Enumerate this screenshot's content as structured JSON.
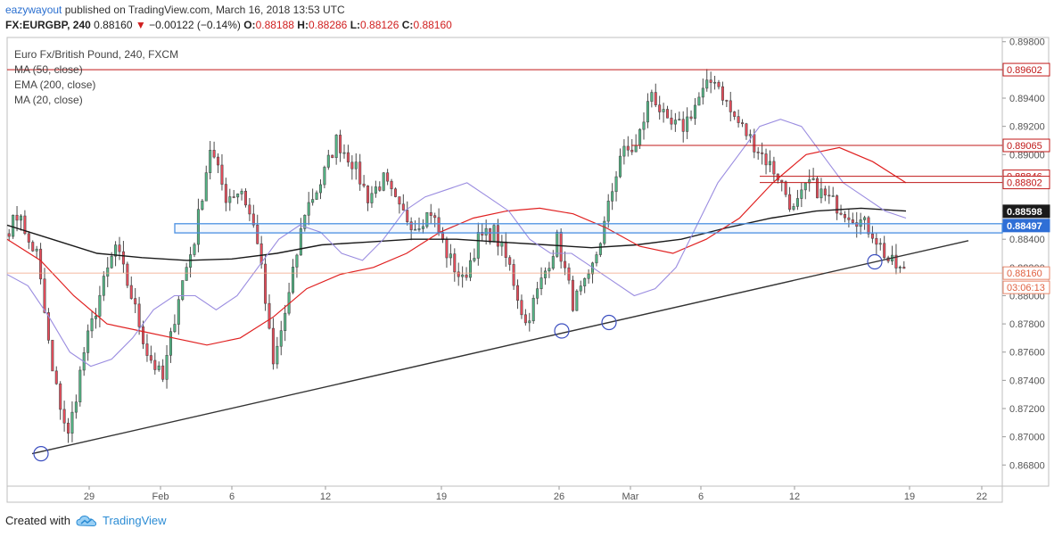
{
  "header": {
    "user": "eazywayout",
    "published": "published on TradingView.com, March 16, 2018 13:53 UTC",
    "symbol": "FX:EURGBP, 240",
    "last": "0.88160",
    "change_arrow": "▼",
    "change": "−0.00122 (−0.14%)",
    "o_label": "O:",
    "o_value": "0.88188",
    "h_label": "H:",
    "h_value": "0.88286",
    "l_label": "L:",
    "l_value": "0.88126",
    "c_label": "C:",
    "c_value": "0.88160"
  },
  "legend": {
    "title": "Euro Fx/British Pound, 240, FXCM",
    "items": [
      "MA (50, close)",
      "EMA (200, close)",
      "MA (20, close)"
    ]
  },
  "footer": {
    "created_with": "Created with",
    "brand": "TradingView",
    "logo_icon": "tradingview-cloud-icon"
  },
  "colors": {
    "bull": "#53b987",
    "bear": "#eb4d5c",
    "candle_outline": "#4a4a4a",
    "ma50": "#e02020",
    "ema200": "#1a1a1a",
    "ma20": "#9a8ce0",
    "resistance": "#c01818",
    "zone": "#4a90e2",
    "trendline": "#333333",
    "price_line": "#f0a080"
  },
  "chart_data": {
    "type": "candlestick",
    "x_axis_ticks": [
      "29",
      "Feb",
      "6",
      "12",
      "19",
      "26",
      "Mar",
      "6",
      "12",
      "19",
      "22"
    ],
    "y_axis_ticks": [
      "0.89800",
      "0.89600",
      "0.89400",
      "0.89200",
      "0.89000",
      "0.88800",
      "0.88600",
      "0.88400",
      "0.88200",
      "0.88000",
      "0.87800",
      "0.87600",
      "0.87400",
      "0.87200",
      "0.87000",
      "0.86800"
    ],
    "ylim": [
      0.8665,
      0.8983
    ],
    "price_labels": [
      {
        "value": "0.89602",
        "kind": "resistance"
      },
      {
        "value": "0.89065",
        "kind": "resistance"
      },
      {
        "value": "0.88846",
        "kind": "resistance"
      },
      {
        "value": "0.88802",
        "kind": "resistance"
      },
      {
        "value": "0.88598",
        "kind": "ema"
      },
      {
        "value": "0.88497",
        "kind": "zone"
      },
      {
        "value": "0.88160",
        "kind": "last"
      },
      {
        "value": "03:06:13",
        "kind": "countdown"
      }
    ],
    "horizontal_levels": [
      0.89602,
      0.89065,
      0.88846,
      0.88802
    ],
    "support_zone": [
      0.88445,
      0.8851
    ],
    "trendline": [
      [
        0.8688,
        0
      ],
      [
        0.8839,
        1
      ]
    ],
    "swing_lows_marked": [
      0.8688,
      0.8775,
      0.8781,
      0.8824
    ],
    "anchors": [
      [
        0.8844,
        0.886
      ],
      [
        0.8845,
        0.883
      ],
      [
        0.883,
        0.8745
      ],
      [
        0.8745,
        0.87
      ],
      [
        0.87,
        0.876
      ],
      [
        0.876,
        0.88
      ],
      [
        0.88,
        0.8835
      ],
      [
        0.8835,
        0.88
      ],
      [
        0.88,
        0.876
      ],
      [
        0.876,
        0.874
      ],
      [
        0.874,
        0.88
      ],
      [
        0.88,
        0.884
      ],
      [
        0.884,
        0.8905
      ],
      [
        0.8905,
        0.887
      ],
      [
        0.887,
        0.8875
      ],
      [
        0.8875,
        0.884
      ],
      [
        0.884,
        0.875
      ],
      [
        0.875,
        0.88
      ],
      [
        0.88,
        0.886
      ],
      [
        0.886,
        0.888
      ],
      [
        0.888,
        0.891
      ],
      [
        0.891,
        0.8895
      ],
      [
        0.8895,
        0.887
      ],
      [
        0.887,
        0.8882
      ],
      [
        0.8882,
        0.886
      ],
      [
        0.886,
        0.885
      ],
      [
        0.885,
        0.886
      ],
      [
        0.886,
        0.883
      ],
      [
        0.883,
        0.881
      ],
      [
        0.881,
        0.884
      ],
      [
        0.884,
        0.8845
      ],
      [
        0.8845,
        0.882
      ],
      [
        0.882,
        0.878
      ],
      [
        0.878,
        0.881
      ],
      [
        0.881,
        0.884
      ],
      [
        0.884,
        0.8795
      ],
      [
        0.8795,
        0.881
      ],
      [
        0.881,
        0.885
      ],
      [
        0.885,
        0.89
      ],
      [
        0.89,
        0.8905
      ],
      [
        0.8905,
        0.8945
      ],
      [
        0.8945,
        0.892
      ],
      [
        0.892,
        0.892
      ],
      [
        0.892,
        0.894
      ],
      [
        0.894,
        0.8955
      ],
      [
        0.8955,
        0.893
      ],
      [
        0.893,
        0.8915
      ],
      [
        0.8915,
        0.89
      ],
      [
        0.89,
        0.8885
      ],
      [
        0.8885,
        0.886
      ],
      [
        0.886,
        0.888
      ],
      [
        0.888,
        0.887
      ],
      [
        0.887,
        0.8862
      ],
      [
        0.8862,
        0.8855
      ],
      [
        0.8855,
        0.8845
      ],
      [
        0.8845,
        0.8825
      ],
      [
        0.8825,
        0.8816
      ]
    ],
    "ma20": [
      0.8815,
      0.8807,
      0.8785,
      0.876,
      0.875,
      0.8755,
      0.877,
      0.879,
      0.88,
      0.88,
      0.879,
      0.88,
      0.882,
      0.884,
      0.885,
      0.8845,
      0.883,
      0.8825,
      0.884,
      0.886,
      0.887,
      0.8875,
      0.888,
      0.887,
      0.886,
      0.884,
      0.883,
      0.883,
      0.882,
      0.881,
      0.88,
      0.8805,
      0.882,
      0.885,
      0.888,
      0.89,
      0.892,
      0.8925,
      0.892,
      0.89,
      0.888,
      0.887,
      0.886,
      0.8855
    ],
    "ma50": [
      0.884,
      0.8825,
      0.88,
      0.878,
      0.8775,
      0.877,
      0.8765,
      0.877,
      0.8785,
      0.8805,
      0.8815,
      0.882,
      0.883,
      0.8845,
      0.8855,
      0.886,
      0.8862,
      0.8858,
      0.8848,
      0.8835,
      0.883,
      0.884,
      0.8855,
      0.888,
      0.89,
      0.8905,
      0.8895,
      0.888
    ],
    "ema200": [
      0.885,
      0.884,
      0.883,
      0.8827,
      0.8825,
      0.8826,
      0.883,
      0.8836,
      0.8838,
      0.884,
      0.884,
      0.8838,
      0.8836,
      0.8834,
      0.8836,
      0.884,
      0.8848,
      0.8855,
      0.886,
      0.8862,
      0.886
    ]
  }
}
